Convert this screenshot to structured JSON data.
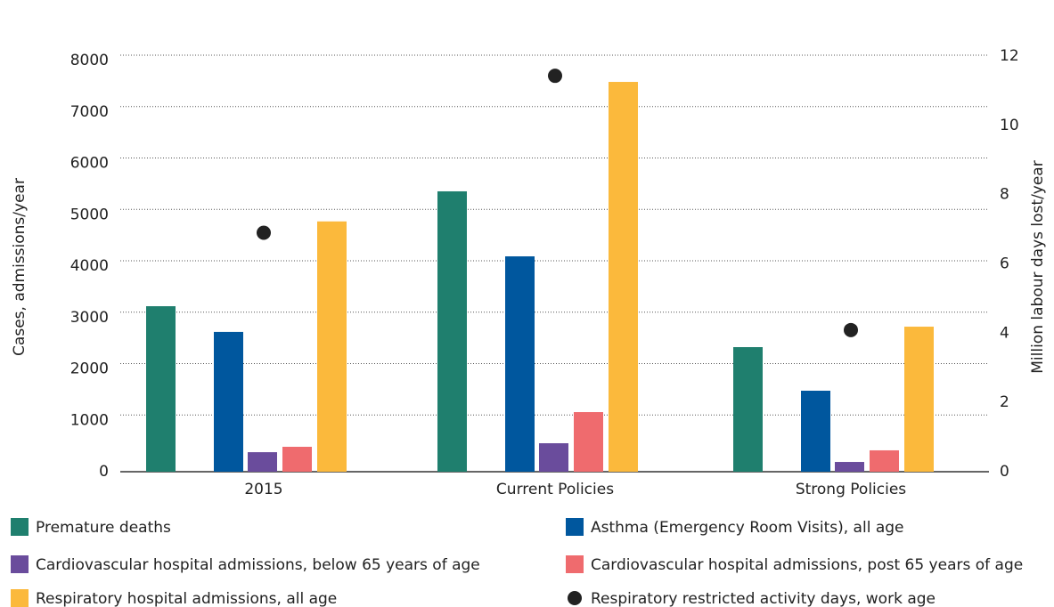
{
  "chart_data": {
    "type": "bar",
    "categories": [
      "2015",
      "Current Policies",
      "Strong Policies"
    ],
    "y_label": "Cases, admissions/year",
    "y2_label": "Million labour days lost/year",
    "ylim": [
      0,
      8000
    ],
    "yticks": [
      0,
      1000,
      2000,
      3000,
      4000,
      5000,
      6000,
      7000,
      8000
    ],
    "y2lim": [
      0,
      12
    ],
    "y2ticks": [
      0,
      2,
      4,
      6,
      8,
      10,
      12
    ],
    "grid": true,
    "series": [
      {
        "name": "Premature deaths",
        "color": "#1f7f6e",
        "values": [
          3220,
          5455,
          2424
        ]
      },
      {
        "name": "Asthma (Emergency Room Visits), all age",
        "color": "#00579e",
        "values": [
          2720,
          4190,
          1576
        ]
      },
      {
        "name": "Cardiovascular hospital admissions, below 65 years of age",
        "color": "#6a4c9c",
        "values": [
          380,
          554,
          190
        ]
      },
      {
        "name": "Cardiovascular hospital admissions, post 65 years of age",
        "color": "#ef6b6e",
        "values": [
          485,
          1160,
          416
        ]
      },
      {
        "name": "Respiratory hospital admissions, all age",
        "color": "#fbb93c",
        "values": [
          4870,
          7584,
          2822
        ]
      },
      {
        "name": "Respiratory restricted activity days, work age",
        "color": "#222222",
        "type": "scatter",
        "axis": "y2",
        "values": [
          6.9,
          11.43,
          4.09
        ]
      }
    ]
  }
}
